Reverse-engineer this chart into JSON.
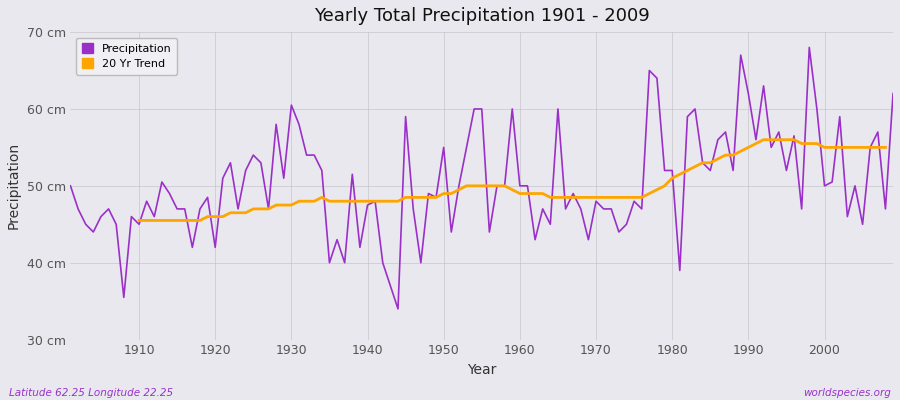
{
  "title": "Yearly Total Precipitation 1901 - 2009",
  "xlabel": "Year",
  "ylabel": "Precipitation",
  "latitude_label": "Latitude 62.25 Longitude 22.25",
  "source_label": "worldspecies.org",
  "ylim": [
    30,
    70
  ],
  "yticks": [
    30,
    40,
    50,
    60,
    70
  ],
  "ytick_labels": [
    "30 cm",
    "40 cm",
    "50 cm",
    "60 cm",
    "70 cm"
  ],
  "xlim": [
    1901,
    2009
  ],
  "precip_color": "#9B30C8",
  "trend_color": "#FFA500",
  "bg_color": "#E8E8EE",
  "plot_bg_color": "#E8E8EE",
  "grid_color": "#CCCCCC",
  "years": [
    1901,
    1902,
    1903,
    1904,
    1905,
    1906,
    1907,
    1908,
    1909,
    1910,
    1911,
    1912,
    1913,
    1914,
    1915,
    1916,
    1917,
    1918,
    1919,
    1920,
    1921,
    1922,
    1923,
    1924,
    1925,
    1926,
    1927,
    1928,
    1929,
    1930,
    1931,
    1932,
    1933,
    1934,
    1935,
    1936,
    1937,
    1938,
    1939,
    1940,
    1941,
    1942,
    1943,
    1944,
    1945,
    1946,
    1947,
    1948,
    1949,
    1950,
    1951,
    1952,
    1953,
    1954,
    1955,
    1956,
    1957,
    1958,
    1959,
    1960,
    1961,
    1962,
    1963,
    1964,
    1965,
    1966,
    1967,
    1968,
    1969,
    1970,
    1971,
    1972,
    1973,
    1974,
    1975,
    1976,
    1977,
    1978,
    1979,
    1980,
    1981,
    1982,
    1983,
    1984,
    1985,
    1986,
    1987,
    1988,
    1989,
    1990,
    1991,
    1992,
    1993,
    1994,
    1995,
    1996,
    1997,
    1998,
    1999,
    2000,
    2001,
    2002,
    2003,
    2004,
    2005,
    2006,
    2007,
    2008,
    2009
  ],
  "precipitation": [
    50.0,
    47.0,
    45.0,
    44.0,
    46.0,
    47.0,
    45.0,
    35.5,
    46.0,
    45.0,
    48.0,
    46.0,
    50.5,
    49.0,
    47.0,
    47.0,
    42.0,
    47.0,
    48.5,
    42.0,
    51.0,
    53.0,
    47.0,
    52.0,
    54.0,
    53.0,
    47.0,
    58.0,
    51.0,
    60.5,
    58.0,
    54.0,
    54.0,
    52.0,
    40.0,
    43.0,
    40.0,
    51.5,
    42.0,
    47.5,
    48.0,
    40.0,
    37.0,
    34.0,
    59.0,
    47.0,
    40.0,
    49.0,
    48.5,
    55.0,
    44.0,
    50.0,
    55.0,
    60.0,
    60.0,
    44.0,
    50.0,
    50.0,
    60.0,
    50.0,
    50.0,
    43.0,
    47.0,
    45.0,
    60.0,
    47.0,
    49.0,
    47.0,
    43.0,
    48.0,
    47.0,
    47.0,
    44.0,
    45.0,
    48.0,
    47.0,
    65.0,
    64.0,
    52.0,
    52.0,
    39.0,
    59.0,
    60.0,
    53.0,
    52.0,
    56.0,
    57.0,
    52.0,
    67.0,
    62.0,
    56.0,
    63.0,
    55.0,
    57.0,
    52.0,
    56.5,
    47.0,
    68.0,
    60.0,
    50.0,
    50.5,
    59.0,
    46.0,
    50.0,
    45.0,
    55.0,
    57.0,
    47.0,
    62.0
  ],
  "trend": [
    null,
    null,
    null,
    null,
    null,
    null,
    null,
    null,
    null,
    45.5,
    45.5,
    45.5,
    45.5,
    45.5,
    45.5,
    45.5,
    45.5,
    45.5,
    46.0,
    46.0,
    46.0,
    46.5,
    46.5,
    46.5,
    47.0,
    47.0,
    47.0,
    47.5,
    47.5,
    47.5,
    48.0,
    48.0,
    48.0,
    48.5,
    48.0,
    48.0,
    48.0,
    48.0,
    48.0,
    48.0,
    48.0,
    48.0,
    48.0,
    48.0,
    48.5,
    48.5,
    48.5,
    48.5,
    48.5,
    49.0,
    49.0,
    49.5,
    50.0,
    50.0,
    50.0,
    50.0,
    50.0,
    50.0,
    49.5,
    49.0,
    49.0,
    49.0,
    49.0,
    48.5,
    48.5,
    48.5,
    48.5,
    48.5,
    48.5,
    48.5,
    48.5,
    48.5,
    48.5,
    48.5,
    48.5,
    48.5,
    49.0,
    49.5,
    50.0,
    51.0,
    51.5,
    52.0,
    52.5,
    53.0,
    53.0,
    53.5,
    54.0,
    54.0,
    54.5,
    55.0,
    55.5,
    56.0,
    56.0,
    56.0,
    56.0,
    56.0,
    55.5,
    55.5,
    55.5,
    55.0,
    55.0,
    55.0,
    55.0,
    55.0,
    55.0,
    55.0,
    55.0,
    55.0,
    null
  ]
}
